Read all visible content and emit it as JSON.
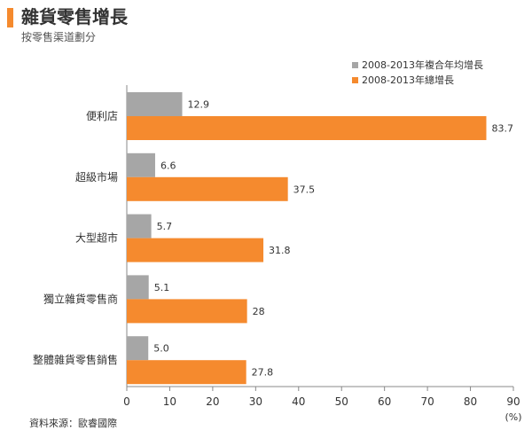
{
  "header": {
    "title": "雜貨零售增長",
    "subtitle": "按零售渠道劃分",
    "accent_color": "#f58a2e"
  },
  "footer": {
    "source": "資料來源：歐睿國際"
  },
  "chart_data": {
    "type": "bar",
    "orientation": "horizontal",
    "title": "雜貨零售增長",
    "subtitle": "按零售渠道劃分",
    "xlabel": "(%)",
    "ylabel": "",
    "xlim": [
      0,
      90
    ],
    "xticks": [
      0,
      10,
      20,
      30,
      40,
      50,
      60,
      70,
      80,
      90
    ],
    "grid": false,
    "legend_position": "top-right",
    "categories": [
      "便利店",
      "超級市場",
      "大型超市",
      "獨立雜貨零售商",
      "整體雜貨零售銷售"
    ],
    "series": [
      {
        "name": "2008-2013年複合年均增長",
        "color": "#a6a6a6",
        "values": [
          12.9,
          6.6,
          5.7,
          5.1,
          5.0
        ],
        "labels": [
          "12.9",
          "6.6",
          "5.7",
          "5.1",
          "5.0"
        ]
      },
      {
        "name": "2008-2013年總增長",
        "color": "#f58a2e",
        "values": [
          83.7,
          37.5,
          31.8,
          28,
          27.8
        ],
        "labels": [
          "83.7",
          "37.5",
          "31.8",
          "28",
          "27.8"
        ]
      }
    ]
  }
}
